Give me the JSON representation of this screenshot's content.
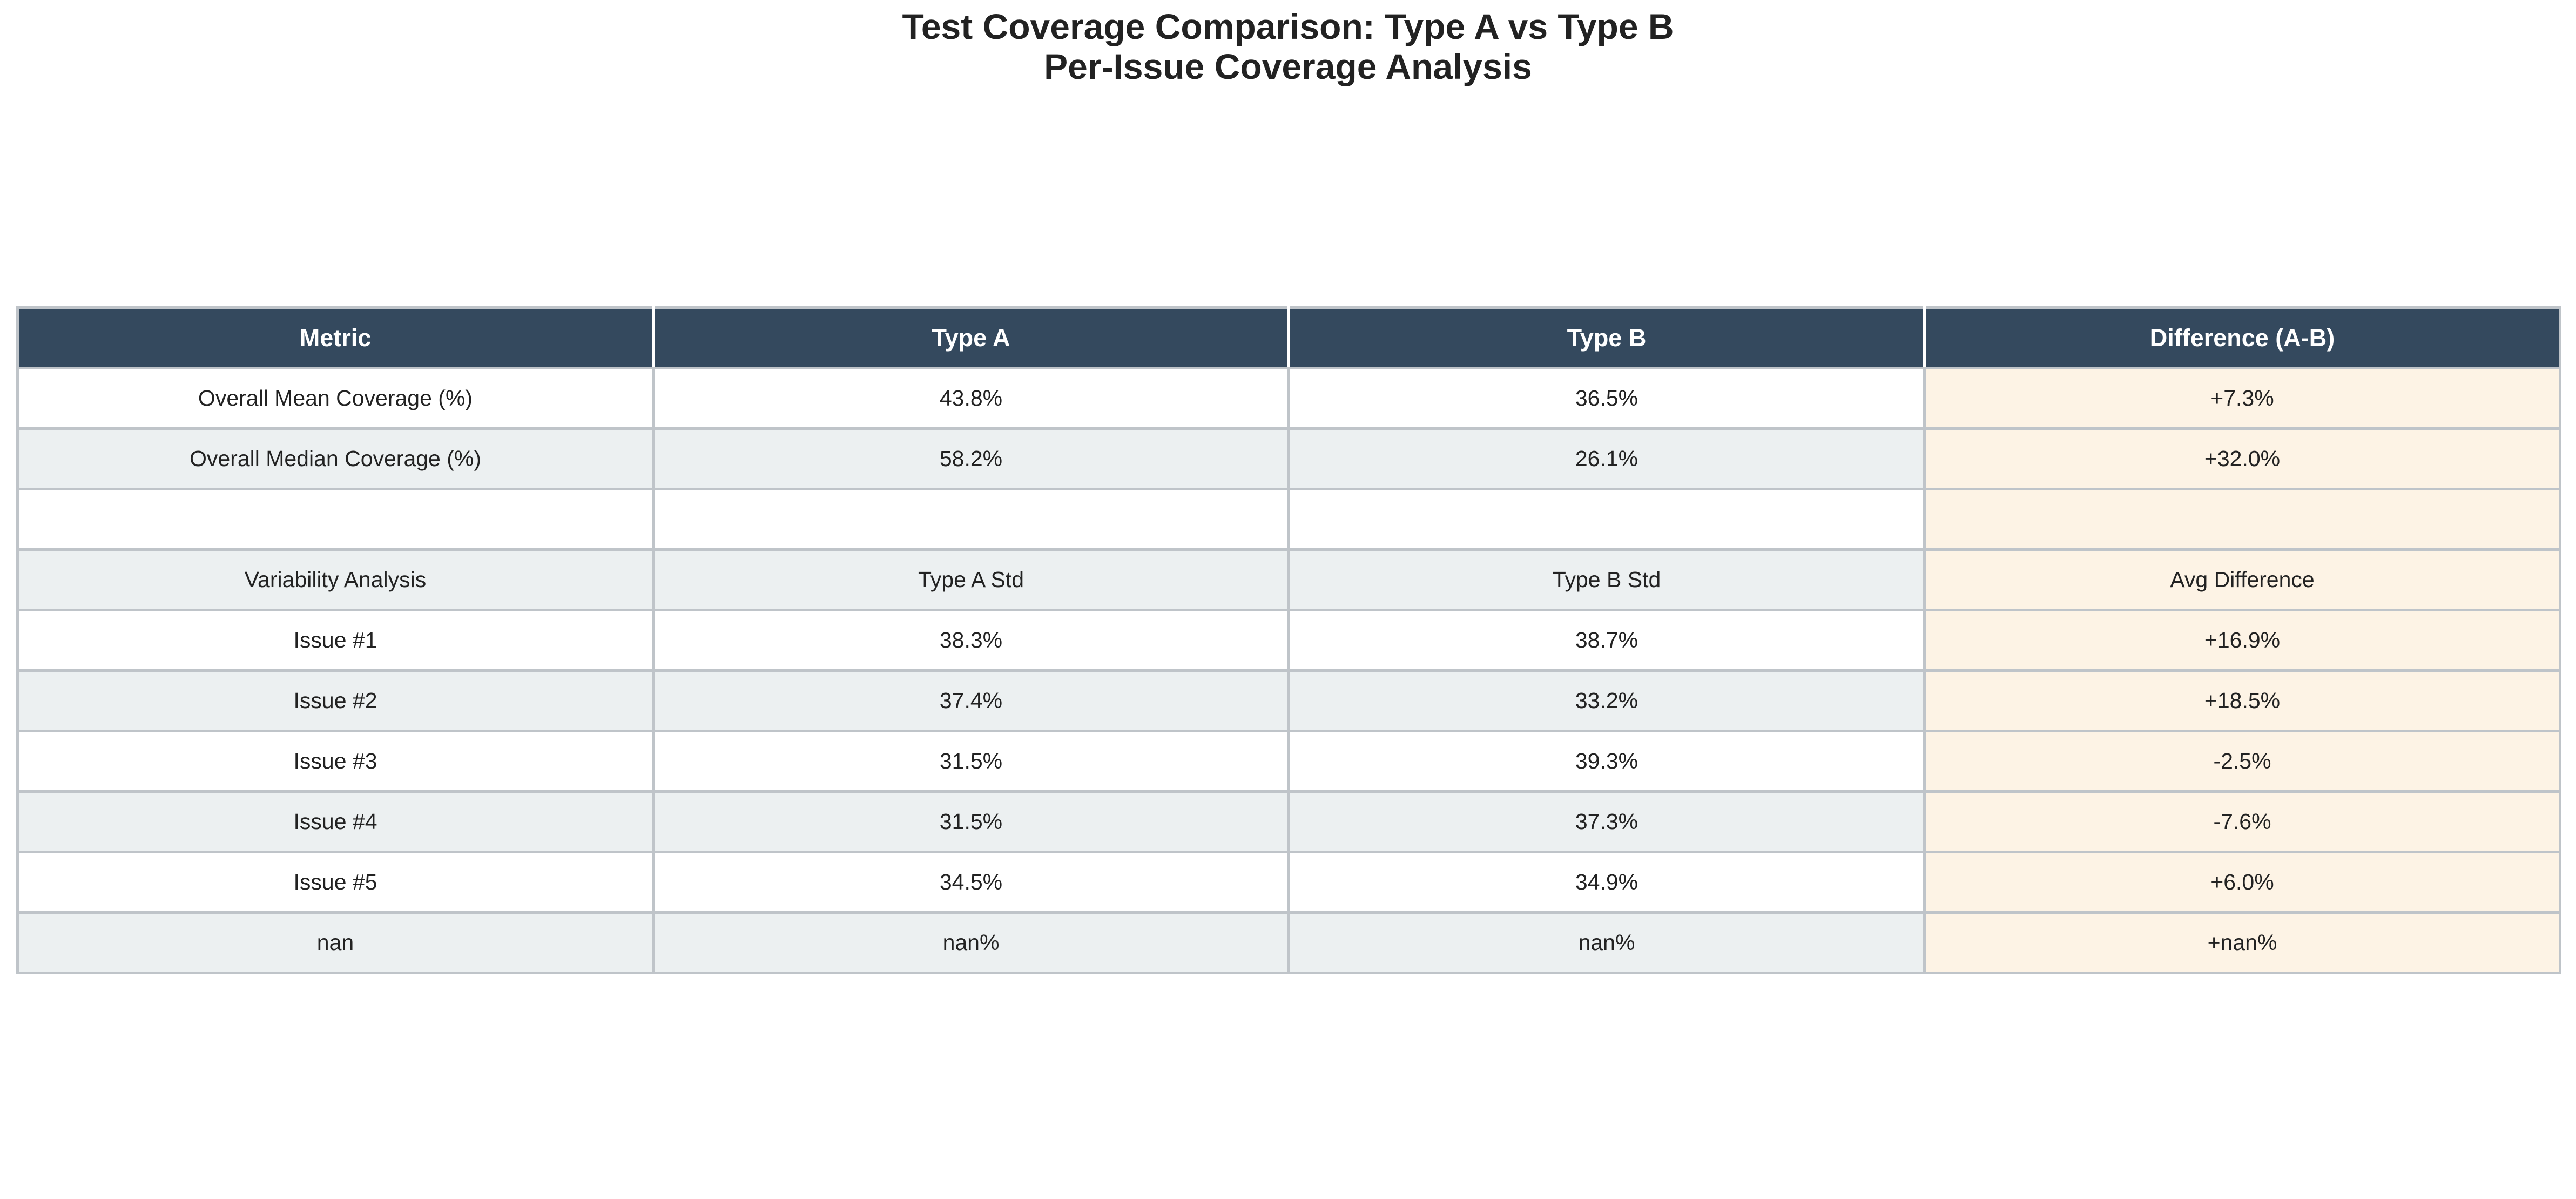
{
  "title_lines": [
    "Test Coverage Comparison: Type A vs Type B",
    "Per-Issue Coverage Analysis"
  ],
  "chart_data": {
    "type": "table",
    "title": "Test Coverage Comparison: Type A vs Type B\nPer-Issue Coverage Analysis",
    "columns": [
      "Metric",
      "Type A",
      "Type B",
      "Difference (A-B)"
    ],
    "rows": [
      [
        "Overall Mean Coverage (%)",
        "43.8%",
        "36.5%",
        "+7.3%"
      ],
      [
        "Overall Median Coverage (%)",
        "58.2%",
        "26.1%",
        "+32.0%"
      ],
      [
        "",
        "",
        "",
        ""
      ],
      [
        "Variability Analysis",
        "Type A Std",
        "Type B Std",
        "Avg Difference"
      ],
      [
        "Issue #1",
        "38.3%",
        "38.7%",
        "+16.9%"
      ],
      [
        "Issue #2",
        "37.4%",
        "33.2%",
        "+18.5%"
      ],
      [
        "Issue #3",
        "31.5%",
        "39.3%",
        "-2.5%"
      ],
      [
        "Issue #4",
        "31.5%",
        "37.3%",
        "-7.6%"
      ],
      [
        "Issue #5",
        "34.5%",
        "34.9%",
        "+6.0%"
      ],
      [
        "nan",
        "nan%",
        "nan%",
        "+nan%"
      ]
    ],
    "colors": {
      "header_bg": "#34495e",
      "header_text": "#ffffff",
      "row_odd": "#ffffff",
      "row_even": "#ecf0f1",
      "difference_column": "#fdf3e5",
      "grid": "#bfc4c9"
    }
  }
}
